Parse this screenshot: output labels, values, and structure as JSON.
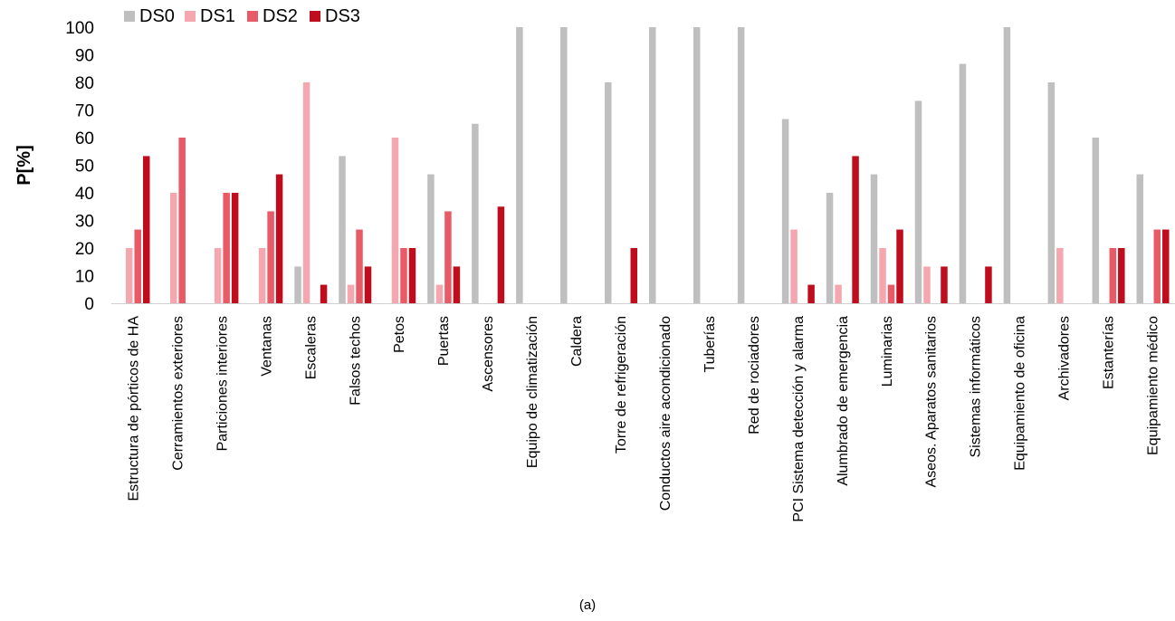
{
  "chart_data": {
    "type": "bar",
    "ylabel": "P[%]",
    "xlabel": "",
    "ylim": [
      0,
      100
    ],
    "yticks": [
      0,
      10,
      20,
      30,
      40,
      50,
      60,
      70,
      80,
      90,
      100
    ],
    "grid": false,
    "legend_position": "top-left",
    "categories": [
      "Estructura de pórticos de HA",
      "Cerramientos exteriores",
      "Particiones interiores",
      "Ventanas",
      "Escaleras",
      "Falsos techos",
      "Petos",
      "Puertas",
      "Ascensores",
      "Equipo de climatización",
      "Caldera",
      "Torre de refrigeración",
      "Conductos aire acondicionado",
      "Tuberías",
      "Red de rociadores",
      "PCI Sistema detección y alarma",
      "Alumbrado de emergencia",
      "Luminarias",
      "Aseos. Aparatos sanitarios",
      "Sistemas informáticos",
      "Equipamiento de oficina",
      "Archivadores",
      "Estanterías",
      "Equipamiento médico"
    ],
    "series": [
      {
        "name": "DS0",
        "color": "#bfbfbf",
        "values": [
          0,
          0,
          0,
          0,
          13.3,
          53.3,
          0,
          46.7,
          65,
          100,
          100,
          80,
          100,
          100,
          100,
          66.7,
          40,
          46.7,
          73.3,
          86.7,
          100,
          80,
          60,
          46.7
        ]
      },
      {
        "name": "DS1",
        "color": "#f4a7ae",
        "values": [
          20,
          40,
          20,
          20,
          80,
          6.7,
          60,
          6.7,
          0,
          0,
          0,
          0,
          0,
          0,
          0,
          26.7,
          6.7,
          20,
          13.3,
          0,
          0,
          20,
          0,
          0
        ]
      },
      {
        "name": "DS2",
        "color": "#e85a66",
        "values": [
          26.7,
          60,
          40,
          33.3,
          0,
          26.7,
          20,
          33.3,
          0,
          0,
          0,
          0,
          0,
          0,
          0,
          0,
          0,
          6.7,
          0,
          0,
          0,
          0,
          20,
          26.7
        ]
      },
      {
        "name": "DS3",
        "color": "#c00d1e",
        "values": [
          53.3,
          0,
          40,
          46.7,
          6.7,
          13.3,
          20,
          13.3,
          35,
          0,
          0,
          20,
          0,
          0,
          0,
          6.7,
          53.3,
          26.7,
          13.3,
          13.3,
          0,
          0,
          20,
          26.7
        ]
      }
    ]
  },
  "caption": "(a)"
}
